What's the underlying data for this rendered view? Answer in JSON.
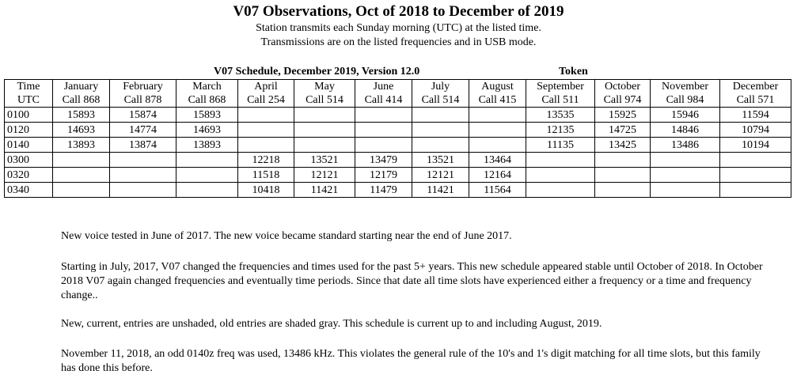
{
  "title": "V07 Observations, Oct of 2018 to December of 2019",
  "subtitle_lines": [
    "Station transmits each Sunday morning (UTC) at the listed time.",
    "Transmissions are on the listed frequencies and in USB mode."
  ],
  "schedule_heading": "V07 Schedule, December 2019, Version 12.0",
  "token_heading": "Token",
  "table": {
    "headers": [
      {
        "top": "Time",
        "bottom": "UTC"
      },
      {
        "top": "January",
        "bottom": "Call 868"
      },
      {
        "top": "February",
        "bottom": "Call 878"
      },
      {
        "top": "March",
        "bottom": "Call 868"
      },
      {
        "top": "April",
        "bottom": "Call 254"
      },
      {
        "top": "May",
        "bottom": "Call 514"
      },
      {
        "top": "June",
        "bottom": "Call 414"
      },
      {
        "top": "July",
        "bottom": "Call 514"
      },
      {
        "top": "August",
        "bottom": "Call 415"
      },
      {
        "top": "September",
        "bottom": "Call 511"
      },
      {
        "top": "October",
        "bottom": "Call 974"
      },
      {
        "top": "November",
        "bottom": "Call 984"
      },
      {
        "top": "December",
        "bottom": "Call 571"
      }
    ],
    "rows": [
      [
        "0100",
        "15893",
        "15874",
        "15893",
        "",
        "",
        "",
        "",
        "",
        "13535",
        "15925",
        "15946",
        "11594"
      ],
      [
        "0120",
        "14693",
        "14774",
        "14693",
        "",
        "",
        "",
        "",
        "",
        "12135",
        "14725",
        "14846",
        "10794"
      ],
      [
        "0140",
        "13893",
        "13874",
        "13893",
        "",
        "",
        "",
        "",
        "",
        "11135",
        "13425",
        "13486",
        "10194"
      ],
      [
        "0300",
        "",
        "",
        "",
        "12218",
        "13521",
        "13479",
        "13521",
        "13464",
        "",
        "",
        "",
        ""
      ],
      [
        "0320",
        "",
        "",
        "",
        "11518",
        "12121",
        "12179",
        "12121",
        "12164",
        "",
        "",
        "",
        ""
      ],
      [
        "0340",
        "",
        "",
        "",
        "10418",
        "11421",
        "11479",
        "11421",
        "11564",
        "",
        "",
        "",
        ""
      ]
    ]
  },
  "notes": [
    "New voice tested in June of 2017.  The new voice became standard starting near the end of June 2017.",
    "Starting in July, 2017, V07 changed the frequencies and times used for the past 5+ years.  This new schedule appeared stable until October of 2018.  In October 2018 V07 again changed frequencies and eventually time periods.  Since that date all time slots have experienced either a frequency or a time and frequency change..",
    "New, current, entries are unshaded, old entries are shaded gray.  This schedule is current up to and including August, 2019.",
    "November 11, 2018, an odd 0140z freq was used, 13486 kHz.  This violates the general rule of the 10's and 1's digit matching for all time slots, but this family has done this before."
  ]
}
